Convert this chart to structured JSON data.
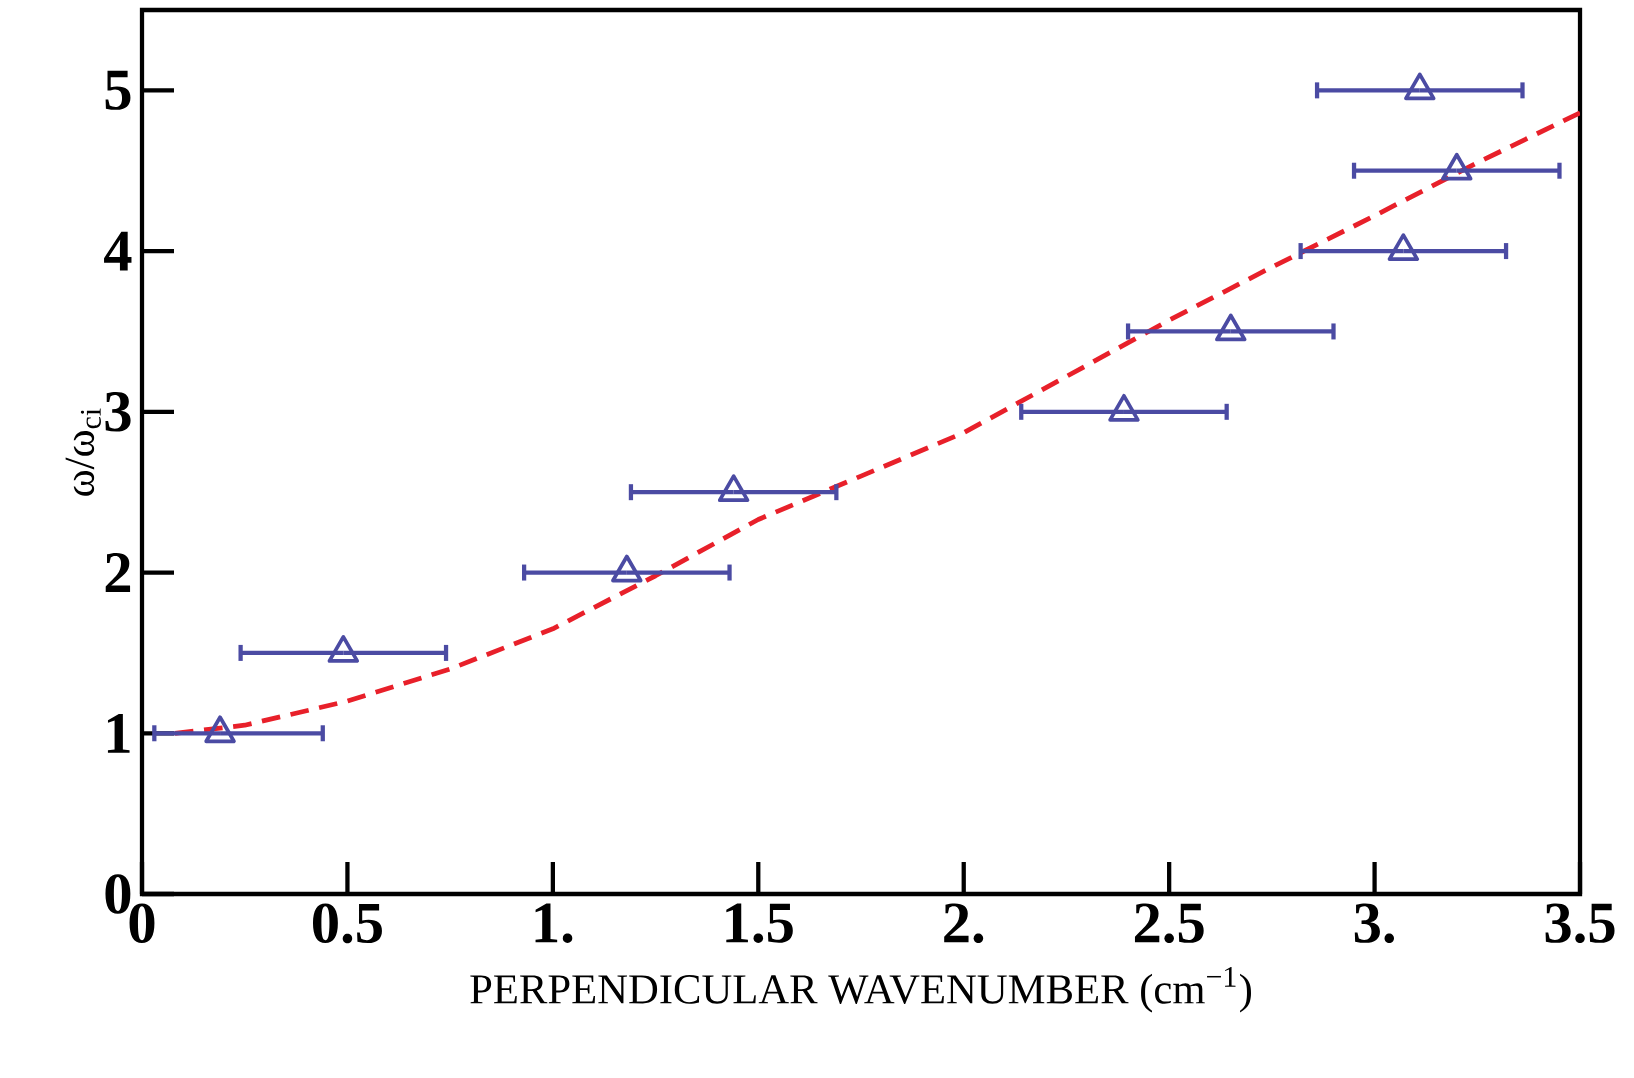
{
  "chart_data": {
    "type": "scatter",
    "xlabel": "PERPENDICULAR WAVENUMBER (cm$^{−1}$)",
    "ylabel": "ω/ω$_{ci}$",
    "xlim": [
      0,
      3.5
    ],
    "ylim": [
      0,
      5.5
    ],
    "xticks": [
      0,
      0.5,
      {
        "value": 1,
        "label": "1."
      },
      1.5,
      {
        "value": 2,
        "label": "2."
      },
      2.5,
      {
        "value": 3,
        "label": "3."
      },
      3.5
    ],
    "yticks": [
      0,
      1,
      2,
      3,
      4,
      5
    ],
    "grid": false,
    "series": [
      {
        "type": "scatter",
        "color": "#4b4ba3",
        "marker": "triangle",
        "x": [
          0.19,
          0.49,
          1.18,
          1.44,
          2.39,
          2.65,
          3.07,
          3.2,
          3.11
        ],
        "values": [
          1,
          1.5,
          2,
          2.5,
          3,
          3.5,
          4,
          4.5,
          5
        ],
        "xerrors": [
          [
            0.03,
            0.44
          ],
          0.25,
          0.25,
          0.25,
          0.25,
          0.25,
          0.25,
          0.25,
          0.25
        ]
      },
      {
        "type": "line",
        "color": "#e8202a",
        "line_style": "dashed",
        "marker": "none",
        "x": [
          0.08,
          0.25,
          0.5,
          0.75,
          1.0,
          1.25,
          1.5,
          1.75,
          2.0,
          2.25,
          2.5,
          2.75,
          3.0,
          3.25,
          3.5
        ],
        "values": [
          1.0,
          1.05,
          1.2,
          1.4,
          1.65,
          1.98,
          2.33,
          2.6,
          2.87,
          3.22,
          3.57,
          3.9,
          4.22,
          4.55,
          4.86
        ]
      }
    ]
  }
}
